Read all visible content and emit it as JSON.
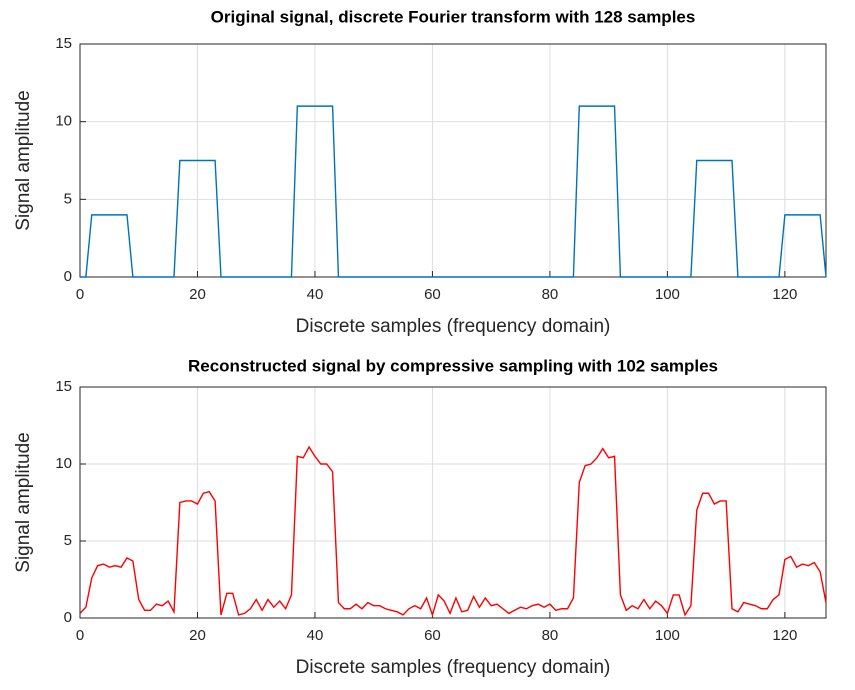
{
  "chart_data": [
    {
      "type": "line",
      "title": "Original signal, discrete Fourier transform with  128  samples",
      "xlabel": "Discrete samples (frequency domain)",
      "ylabel": "Signal amplitude",
      "xlim": [
        0,
        127
      ],
      "ylim": [
        0,
        15
      ],
      "xticks": [
        0,
        20,
        40,
        60,
        80,
        100,
        120
      ],
      "yticks": [
        0,
        5,
        10,
        15
      ],
      "grid": true,
      "x": [
        0,
        1,
        2,
        3,
        4,
        5,
        6,
        7,
        8,
        9,
        10,
        11,
        12,
        13,
        14,
        15,
        16,
        17,
        18,
        19,
        20,
        21,
        22,
        23,
        24,
        25,
        26,
        27,
        28,
        29,
        30,
        31,
        32,
        33,
        34,
        35,
        36,
        37,
        38,
        39,
        40,
        41,
        42,
        43,
        44,
        45,
        46,
        47,
        48,
        49,
        50,
        51,
        52,
        53,
        54,
        55,
        56,
        57,
        58,
        59,
        60,
        61,
        62,
        63,
        64,
        65,
        66,
        67,
        68,
        69,
        70,
        71,
        72,
        73,
        74,
        75,
        76,
        77,
        78,
        79,
        80,
        81,
        82,
        83,
        84,
        85,
        86,
        87,
        88,
        89,
        90,
        91,
        92,
        93,
        94,
        95,
        96,
        97,
        98,
        99,
        100,
        101,
        102,
        103,
        104,
        105,
        106,
        107,
        108,
        109,
        110,
        111,
        112,
        113,
        114,
        115,
        116,
        117,
        118,
        119,
        120,
        121,
        122,
        123,
        124,
        125,
        126,
        127
      ],
      "series": [
        {
          "name": "Original",
          "color": "#0072bd",
          "values": [
            0,
            0,
            4,
            4,
            4,
            4,
            4,
            4,
            4,
            0,
            0,
            0,
            0,
            0,
            0,
            0,
            0,
            7.5,
            7.5,
            7.5,
            7.5,
            7.5,
            7.5,
            7.5,
            0,
            0,
            0,
            0,
            0,
            0,
            0,
            0,
            0,
            0,
            0,
            0,
            0,
            11,
            11,
            11,
            11,
            11,
            11,
            11,
            0,
            0,
            0,
            0,
            0,
            0,
            0,
            0,
            0,
            0,
            0,
            0,
            0,
            0,
            0,
            0,
            0,
            0,
            0,
            0,
            0,
            0,
            0,
            0,
            0,
            0,
            0,
            0,
            0,
            0,
            0,
            0,
            0,
            0,
            0,
            0,
            0,
            0,
            0,
            0,
            0,
            11,
            11,
            11,
            11,
            11,
            11,
            11,
            0,
            0,
            0,
            0,
            0,
            0,
            0,
            0,
            0,
            0,
            0,
            0,
            0,
            7.5,
            7.5,
            7.5,
            7.5,
            7.5,
            7.5,
            7.5,
            0,
            0,
            0,
            0,
            0,
            0,
            0,
            0,
            4,
            4,
            4,
            4,
            4,
            4,
            4,
            0
          ]
        }
      ]
    },
    {
      "type": "line",
      "title": "Reconstructed signal by compressive sampling with 102 samples",
      "xlabel": "Discrete samples (frequency domain)",
      "ylabel": "Signal amplitude",
      "xlim": [
        0,
        127
      ],
      "ylim": [
        0,
        15
      ],
      "xticks": [
        0,
        20,
        40,
        60,
        80,
        100,
        120
      ],
      "yticks": [
        0,
        5,
        10,
        15
      ],
      "grid": true,
      "x": [
        0,
        1,
        2,
        3,
        4,
        5,
        6,
        7,
        8,
        9,
        10,
        11,
        12,
        13,
        14,
        15,
        16,
        17,
        18,
        19,
        20,
        21,
        22,
        23,
        24,
        25,
        26,
        27,
        28,
        29,
        30,
        31,
        32,
        33,
        34,
        35,
        36,
        37,
        38,
        39,
        40,
        41,
        42,
        43,
        44,
        45,
        46,
        47,
        48,
        49,
        50,
        51,
        52,
        53,
        54,
        55,
        56,
        57,
        58,
        59,
        60,
        61,
        62,
        63,
        64,
        65,
        66,
        67,
        68,
        69,
        70,
        71,
        72,
        73,
        74,
        75,
        76,
        77,
        78,
        79,
        80,
        81,
        82,
        83,
        84,
        85,
        86,
        87,
        88,
        89,
        90,
        91,
        92,
        93,
        94,
        95,
        96,
        97,
        98,
        99,
        100,
        101,
        102,
        103,
        104,
        105,
        106,
        107,
        108,
        109,
        110,
        111,
        112,
        113,
        114,
        115,
        116,
        117,
        118,
        119,
        120,
        121,
        122,
        123,
        124,
        125,
        126,
        127
      ],
      "series": [
        {
          "name": "Reconstructed",
          "color": "#ff0000",
          "values": [
            0.3,
            0.7,
            2.6,
            3.4,
            3.5,
            3.3,
            3.4,
            3.3,
            3.9,
            3.7,
            1.2,
            0.5,
            0.5,
            0.9,
            0.8,
            1.1,
            0.4,
            7.5,
            7.6,
            7.6,
            7.4,
            8.1,
            8.2,
            7.6,
            0.2,
            1.6,
            1.6,
            0.2,
            0.3,
            0.6,
            1.2,
            0.5,
            1.2,
            0.7,
            1.1,
            0.6,
            1.5,
            10.5,
            10.4,
            11.1,
            10.5,
            10.0,
            10.0,
            9.5,
            1.0,
            0.6,
            0.6,
            0.9,
            0.6,
            1.0,
            0.8,
            0.8,
            0.6,
            0.5,
            0.4,
            0.2,
            0.6,
            0.8,
            0.6,
            1.3,
            0.2,
            1.5,
            1.1,
            0.3,
            1.3,
            0.4,
            0.5,
            1.4,
            0.7,
            1.3,
            0.8,
            0.9,
            0.6,
            0.3,
            0.5,
            0.7,
            0.6,
            0.8,
            0.9,
            0.7,
            0.9,
            0.5,
            0.6,
            0.6,
            1.3,
            8.8,
            9.9,
            10.0,
            10.4,
            11.0,
            10.4,
            10.5,
            1.5,
            0.5,
            0.8,
            0.6,
            1.2,
            0.6,
            1.1,
            0.8,
            0.3,
            1.5,
            1.5,
            0.2,
            0.8,
            7.0,
            8.1,
            8.1,
            7.4,
            7.6,
            7.6,
            0.6,
            0.4,
            1.0,
            0.9,
            0.8,
            0.6,
            0.6,
            1.2,
            1.5,
            3.8,
            4.0,
            3.3,
            3.5,
            3.4,
            3.6,
            3.0,
            1.0
          ]
        }
      ]
    }
  ]
}
